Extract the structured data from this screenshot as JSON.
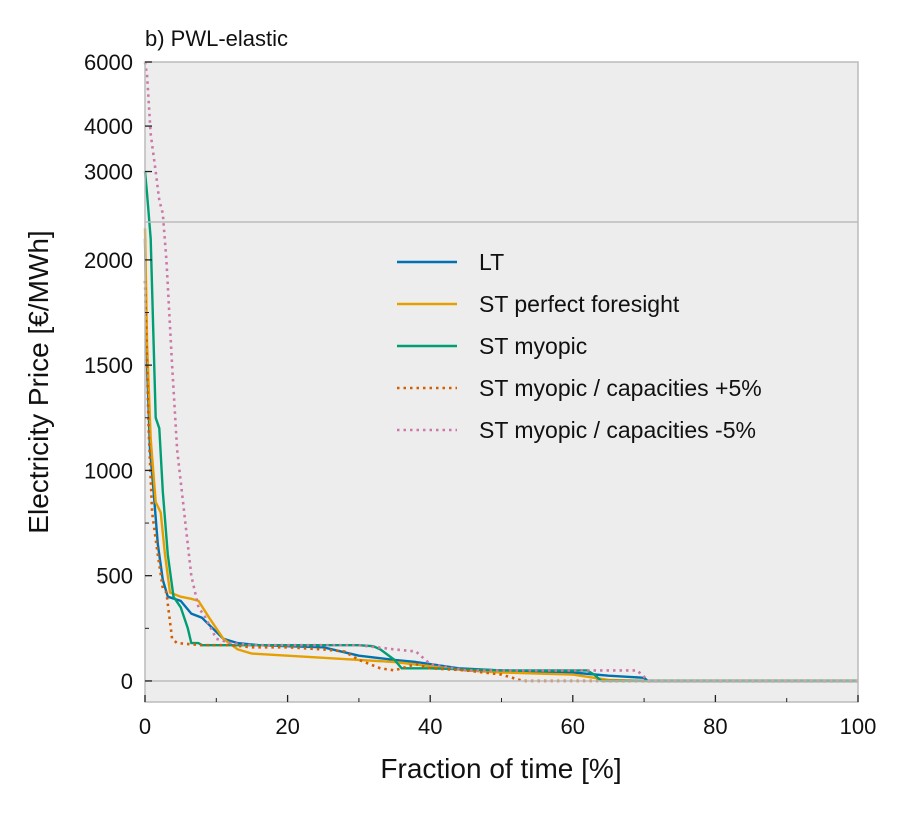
{
  "chart_data": {
    "type": "line",
    "title": "b) PWL-elastic",
    "xlabel": "Fraction of time [%]",
    "ylabel": "Electricity Price [€/MWh]",
    "xlim": [
      0,
      100
    ],
    "ylim_lower": [
      -100,
      2180
    ],
    "ylim_upper": [
      2180,
      6000
    ],
    "x_ticks": [
      "0",
      "20",
      "40",
      "60",
      "80",
      "100"
    ],
    "y_ticks_lower": [
      "0",
      "500",
      "1000",
      "1500",
      "2000"
    ],
    "y_ticks_upper": [
      "3000",
      "4000",
      "6000"
    ],
    "grid": false,
    "legend_position": "upper-right",
    "colors": {
      "background": "#ededed",
      "frame": "#bbbbbb",
      "break_line": "#bbbbbb",
      "zero_line": "#bbbbbb"
    },
    "series": [
      {
        "name": "LT",
        "color": "#0072b2",
        "dash": "solid",
        "points": [
          [
            0,
            2100
          ],
          [
            0.3,
            1500
          ],
          [
            0.7,
            1100
          ],
          [
            1.2,
            900
          ],
          [
            1.8,
            650
          ],
          [
            2.5,
            480
          ],
          [
            3.2,
            400
          ],
          [
            5,
            380
          ],
          [
            6.5,
            320
          ],
          [
            8,
            300
          ],
          [
            9.5,
            250
          ],
          [
            11,
            200
          ],
          [
            13,
            180
          ],
          [
            16,
            170
          ],
          [
            20,
            165
          ],
          [
            25,
            160
          ],
          [
            30,
            120
          ],
          [
            35,
            100
          ],
          [
            38,
            90
          ],
          [
            40,
            80
          ],
          [
            44,
            60
          ],
          [
            50,
            50
          ],
          [
            55,
            45
          ],
          [
            60,
            40
          ],
          [
            65,
            25
          ],
          [
            70,
            15
          ],
          [
            70.5,
            0
          ],
          [
            100,
            0
          ]
        ]
      },
      {
        "name": "ST perfect foresight",
        "color": "#e69f00",
        "dash": "solid",
        "points": [
          [
            0,
            2150
          ],
          [
            0.3,
            1600
          ],
          [
            0.8,
            1150
          ],
          [
            1.5,
            850
          ],
          [
            2.2,
            800
          ],
          [
            2.8,
            600
          ],
          [
            3.5,
            420
          ],
          [
            5,
            400
          ],
          [
            6.5,
            390
          ],
          [
            7.5,
            380
          ],
          [
            9,
            300
          ],
          [
            10,
            250
          ],
          [
            11,
            200
          ],
          [
            13,
            150
          ],
          [
            15,
            130
          ],
          [
            20,
            120
          ],
          [
            25,
            110
          ],
          [
            30,
            100
          ],
          [
            35,
            90
          ],
          [
            40,
            70
          ],
          [
            45,
            50
          ],
          [
            50,
            40
          ],
          [
            55,
            35
          ],
          [
            60,
            30
          ],
          [
            63,
            15
          ],
          [
            65,
            5
          ],
          [
            70,
            0
          ],
          [
            100,
            0
          ]
        ]
      },
      {
        "name": "ST myopic",
        "color": "#009e73",
        "dash": "solid",
        "points": [
          [
            0,
            3000
          ],
          [
            0.3,
            2600
          ],
          [
            0.8,
            2100
          ],
          [
            1.5,
            1250
          ],
          [
            2,
            1200
          ],
          [
            2.5,
            900
          ],
          [
            3.2,
            600
          ],
          [
            4,
            400
          ],
          [
            5,
            350
          ],
          [
            6,
            250
          ],
          [
            6.5,
            180
          ],
          [
            7.5,
            180
          ],
          [
            8,
            170
          ],
          [
            15,
            170
          ],
          [
            25,
            170
          ],
          [
            30,
            170
          ],
          [
            32,
            165
          ],
          [
            33,
            150
          ],
          [
            35,
            100
          ],
          [
            36,
            60
          ],
          [
            40,
            60
          ],
          [
            50,
            50
          ],
          [
            60,
            50
          ],
          [
            62,
            50
          ],
          [
            63,
            30
          ],
          [
            64,
            0
          ],
          [
            100,
            0
          ]
        ]
      },
      {
        "name": "ST myopic / capacities +5%",
        "color": "#d55e00",
        "dash": "dotted",
        "points": [
          [
            0,
            1900
          ],
          [
            0.5,
            1200
          ],
          [
            1,
            800
          ],
          [
            1.8,
            600
          ],
          [
            2.5,
            440
          ],
          [
            3,
            420
          ],
          [
            3.8,
            200
          ],
          [
            4.5,
            180
          ],
          [
            8,
            170
          ],
          [
            12,
            170
          ],
          [
            15,
            160
          ],
          [
            20,
            160
          ],
          [
            25,
            150
          ],
          [
            28,
            140
          ],
          [
            30,
            100
          ],
          [
            33,
            60
          ],
          [
            35,
            50
          ],
          [
            38,
            80
          ],
          [
            40,
            60
          ],
          [
            45,
            50
          ],
          [
            50,
            30
          ],
          [
            53,
            0
          ],
          [
            100,
            0
          ]
        ]
      },
      {
        "name": "ST myopic / capacities -5%",
        "color": "#cc79a7",
        "dash": "dotted",
        "points": [
          [
            0,
            6000
          ],
          [
            0.3,
            5500
          ],
          [
            0.8,
            3800
          ],
          [
            1.5,
            3000
          ],
          [
            2,
            2500
          ],
          [
            2.5,
            2300
          ],
          [
            3,
            2000
          ],
          [
            3.8,
            1500
          ],
          [
            4.5,
            1100
          ],
          [
            5.5,
            800
          ],
          [
            6.5,
            500
          ],
          [
            7.5,
            350
          ],
          [
            8.5,
            300
          ],
          [
            10,
            200
          ],
          [
            12,
            180
          ],
          [
            15,
            170
          ],
          [
            20,
            170
          ],
          [
            25,
            170
          ],
          [
            30,
            170
          ],
          [
            35,
            150
          ],
          [
            38,
            140
          ],
          [
            40,
            80
          ],
          [
            45,
            50
          ],
          [
            50,
            50
          ],
          [
            60,
            50
          ],
          [
            65,
            50
          ],
          [
            69,
            50
          ],
          [
            70,
            20
          ],
          [
            70.5,
            0
          ],
          [
            100,
            0
          ]
        ]
      }
    ]
  }
}
